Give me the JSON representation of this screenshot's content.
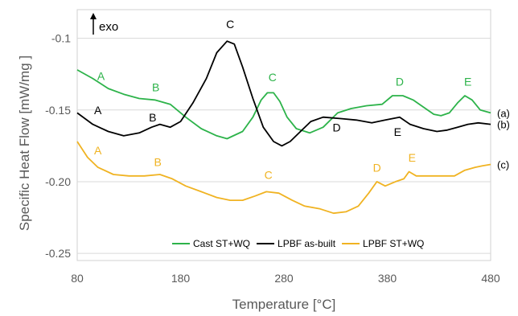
{
  "chart_data": {
    "type": "line",
    "title": "",
    "xlabel": "Temperature [°C]",
    "ylabel": "Specific Heat Flow [mW/mg ]",
    "xlim": [
      80,
      480
    ],
    "ylim": [
      -0.255,
      -0.08
    ],
    "x_ticks": [
      80,
      180,
      280,
      380,
      480
    ],
    "x_tick_labels": [
      "80",
      "180",
      "280",
      "380",
      "480"
    ],
    "y_ticks": [
      -0.1,
      -0.15,
      -0.2,
      -0.25
    ],
    "y_tick_labels": [
      "-0.1",
      "-0.15",
      "-0.20",
      "-0.25"
    ],
    "grid": {
      "horizontal": true,
      "vertical": false
    },
    "exo_label": "exo",
    "legend": {
      "placement": "bottom-right"
    },
    "series": [
      {
        "name": "Cast ST+WQ",
        "color": "#2db34a",
        "tag": "(a)",
        "points": [
          [
            80,
            -0.122
          ],
          [
            95,
            -0.128
          ],
          [
            110,
            -0.135
          ],
          [
            125,
            -0.139
          ],
          [
            140,
            -0.142
          ],
          [
            155,
            -0.143
          ],
          [
            170,
            -0.146
          ],
          [
            185,
            -0.155
          ],
          [
            200,
            -0.163
          ],
          [
            215,
            -0.168
          ],
          [
            225,
            -0.17
          ],
          [
            240,
            -0.165
          ],
          [
            250,
            -0.155
          ],
          [
            258,
            -0.143
          ],
          [
            264,
            -0.138
          ],
          [
            270,
            -0.138
          ],
          [
            276,
            -0.144
          ],
          [
            283,
            -0.155
          ],
          [
            292,
            -0.163
          ],
          [
            305,
            -0.166
          ],
          [
            318,
            -0.162
          ],
          [
            332,
            -0.152
          ],
          [
            345,
            -0.149
          ],
          [
            360,
            -0.147
          ],
          [
            375,
            -0.146
          ],
          [
            385,
            -0.14
          ],
          [
            395,
            -0.14
          ],
          [
            405,
            -0.143
          ],
          [
            415,
            -0.148
          ],
          [
            425,
            -0.153
          ],
          [
            432,
            -0.154
          ],
          [
            440,
            -0.152
          ],
          [
            448,
            -0.145
          ],
          [
            455,
            -0.14
          ],
          [
            462,
            -0.143
          ],
          [
            470,
            -0.15
          ],
          [
            480,
            -0.152
          ]
        ],
        "annotations": [
          {
            "label": "A",
            "x": 103,
            "y": -0.129
          },
          {
            "label": "B",
            "x": 156,
            "y": -0.137
          },
          {
            "label": "C",
            "x": 269,
            "y": -0.13
          },
          {
            "label": "D",
            "x": 392,
            "y": -0.133
          },
          {
            "label": "E",
            "x": 458,
            "y": -0.133
          }
        ]
      },
      {
        "name": "LPBF as-built",
        "color": "#000000",
        "tag": "(b)",
        "points": [
          [
            80,
            -0.152
          ],
          [
            95,
            -0.16
          ],
          [
            110,
            -0.165
          ],
          [
            125,
            -0.168
          ],
          [
            140,
            -0.166
          ],
          [
            152,
            -0.162
          ],
          [
            160,
            -0.16
          ],
          [
            170,
            -0.162
          ],
          [
            180,
            -0.158
          ],
          [
            192,
            -0.145
          ],
          [
            205,
            -0.128
          ],
          [
            215,
            -0.11
          ],
          [
            225,
            -0.102
          ],
          [
            232,
            -0.104
          ],
          [
            240,
            -0.12
          ],
          [
            250,
            -0.142
          ],
          [
            260,
            -0.162
          ],
          [
            270,
            -0.172
          ],
          [
            278,
            -0.175
          ],
          [
            286,
            -0.172
          ],
          [
            296,
            -0.165
          ],
          [
            306,
            -0.158
          ],
          [
            318,
            -0.155
          ],
          [
            335,
            -0.156
          ],
          [
            350,
            -0.157
          ],
          [
            365,
            -0.159
          ],
          [
            378,
            -0.157
          ],
          [
            392,
            -0.155
          ],
          [
            402,
            -0.16
          ],
          [
            415,
            -0.163
          ],
          [
            428,
            -0.165
          ],
          [
            438,
            -0.164
          ],
          [
            448,
            -0.162
          ],
          [
            458,
            -0.16
          ],
          [
            468,
            -0.159
          ],
          [
            480,
            -0.16
          ]
        ],
        "annotations": [
          {
            "label": "A",
            "x": 100,
            "y": -0.153
          },
          {
            "label": "B",
            "x": 153,
            "y": -0.158
          },
          {
            "label": "C",
            "x": 228,
            "y": -0.093
          },
          {
            "label": "D",
            "x": 331,
            "y": -0.165
          },
          {
            "label": "E",
            "x": 390,
            "y": -0.168
          }
        ]
      },
      {
        "name": "LPBF ST+WQ",
        "color": "#f0b322",
        "tag": "(c)",
        "points": [
          [
            80,
            -0.172
          ],
          [
            90,
            -0.183
          ],
          [
            100,
            -0.19
          ],
          [
            115,
            -0.195
          ],
          [
            130,
            -0.196
          ],
          [
            145,
            -0.196
          ],
          [
            160,
            -0.195
          ],
          [
            172,
            -0.198
          ],
          [
            185,
            -0.203
          ],
          [
            200,
            -0.207
          ],
          [
            215,
            -0.211
          ],
          [
            228,
            -0.213
          ],
          [
            240,
            -0.213
          ],
          [
            252,
            -0.21
          ],
          [
            263,
            -0.207
          ],
          [
            275,
            -0.208
          ],
          [
            288,
            -0.213
          ],
          [
            300,
            -0.217
          ],
          [
            315,
            -0.219
          ],
          [
            328,
            -0.222
          ],
          [
            340,
            -0.221
          ],
          [
            352,
            -0.217
          ],
          [
            362,
            -0.208
          ],
          [
            370,
            -0.2
          ],
          [
            378,
            -0.203
          ],
          [
            388,
            -0.2
          ],
          [
            396,
            -0.198
          ],
          [
            401,
            -0.193
          ],
          [
            408,
            -0.196
          ],
          [
            418,
            -0.196
          ],
          [
            430,
            -0.196
          ],
          [
            445,
            -0.196
          ],
          [
            455,
            -0.192
          ],
          [
            465,
            -0.19
          ],
          [
            472,
            -0.189
          ],
          [
            480,
            -0.188
          ]
        ],
        "annotations": [
          {
            "label": "A",
            "x": 100,
            "y": -0.181
          },
          {
            "label": "B",
            "x": 158,
            "y": -0.189
          },
          {
            "label": "C",
            "x": 265,
            "y": -0.198
          },
          {
            "label": "D",
            "x": 370,
            "y": -0.193
          },
          {
            "label": "E",
            "x": 404,
            "y": -0.186
          }
        ]
      }
    ]
  }
}
